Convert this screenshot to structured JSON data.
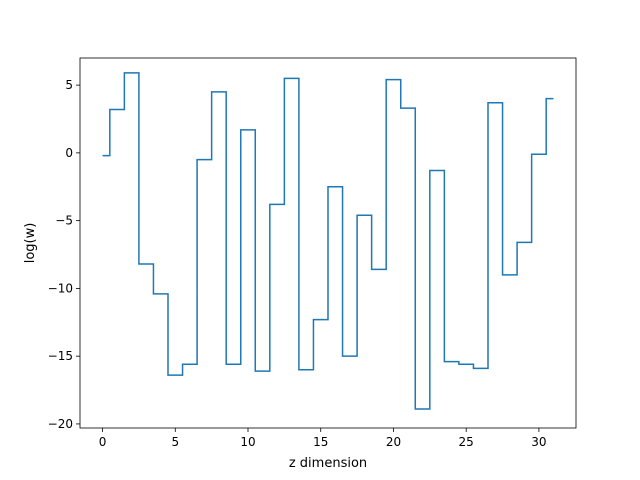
{
  "chart_data": {
    "type": "line",
    "drawstyle": "steps-mid",
    "xlabel": "z dimension",
    "ylabel": "log(w)",
    "xlim": [
      -1.55,
      32.55
    ],
    "ylim": [
      -20.3,
      7.0
    ],
    "xticks": [
      0,
      5,
      10,
      15,
      20,
      25,
      30
    ],
    "yticks": [
      -20,
      -15,
      -10,
      -5,
      0,
      5
    ],
    "grid": false,
    "line_color": "#1f77b4",
    "series": [
      {
        "x": [
          0,
          1,
          2,
          3,
          4,
          5,
          6,
          7,
          8,
          9,
          10,
          11,
          12,
          13,
          14,
          15,
          16,
          17,
          18,
          19,
          20,
          21,
          22,
          23,
          24,
          25,
          26,
          27,
          28,
          29,
          30,
          31
        ],
        "values": [
          -0.2,
          3.2,
          5.9,
          -8.2,
          -10.4,
          -16.4,
          -15.6,
          -0.5,
          4.5,
          -15.6,
          1.7,
          -16.1,
          -3.8,
          5.5,
          -16.0,
          -12.3,
          -2.5,
          -15.0,
          -4.6,
          -8.6,
          5.4,
          3.3,
          -18.9,
          -1.3,
          -15.4,
          -15.6,
          -15.9,
          3.7,
          -9.0,
          -6.6,
          -0.1,
          4.0
        ]
      }
    ]
  }
}
